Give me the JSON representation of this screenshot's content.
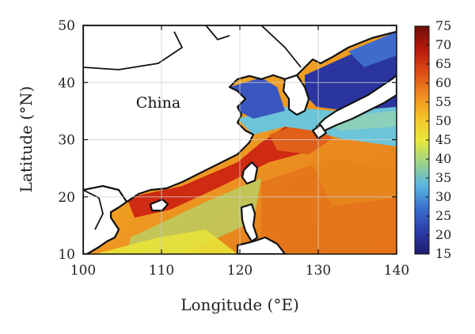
{
  "map": {
    "place_label": "China",
    "x_axis": {
      "title": "Longitude (°E)",
      "range": [
        100,
        140
      ],
      "ticks": [
        100,
        110,
        120,
        130,
        140
      ],
      "tick_labels": [
        "100",
        "110",
        "120",
        "130",
        "140"
      ]
    },
    "y_axis": {
      "title": "Latitude (°N)",
      "range": [
        10,
        50
      ],
      "ticks": [
        10,
        20,
        30,
        40,
        50
      ],
      "tick_labels": [
        "10",
        "20",
        "30",
        "40",
        "50"
      ]
    },
    "grid": true,
    "land_color": "#ffffff",
    "coastline_color": "#111111"
  },
  "colorbar": {
    "range": [
      15,
      75
    ],
    "ticks": [
      15,
      20,
      25,
      30,
      35,
      40,
      45,
      50,
      55,
      60,
      65,
      70,
      75
    ],
    "tick_labels": [
      "15",
      "20",
      "25",
      "30",
      "35",
      "40",
      "45",
      "50",
      "55",
      "60",
      "65",
      "70",
      "75"
    ],
    "colors": [
      "#1e1b6e",
      "#2b3ca8",
      "#3a6fd0",
      "#58b6e0",
      "#9bd38a",
      "#e8e83a",
      "#f5c22a",
      "#ee8a1f",
      "#dd4a14",
      "#b8170c",
      "#6e0f0a"
    ]
  }
}
